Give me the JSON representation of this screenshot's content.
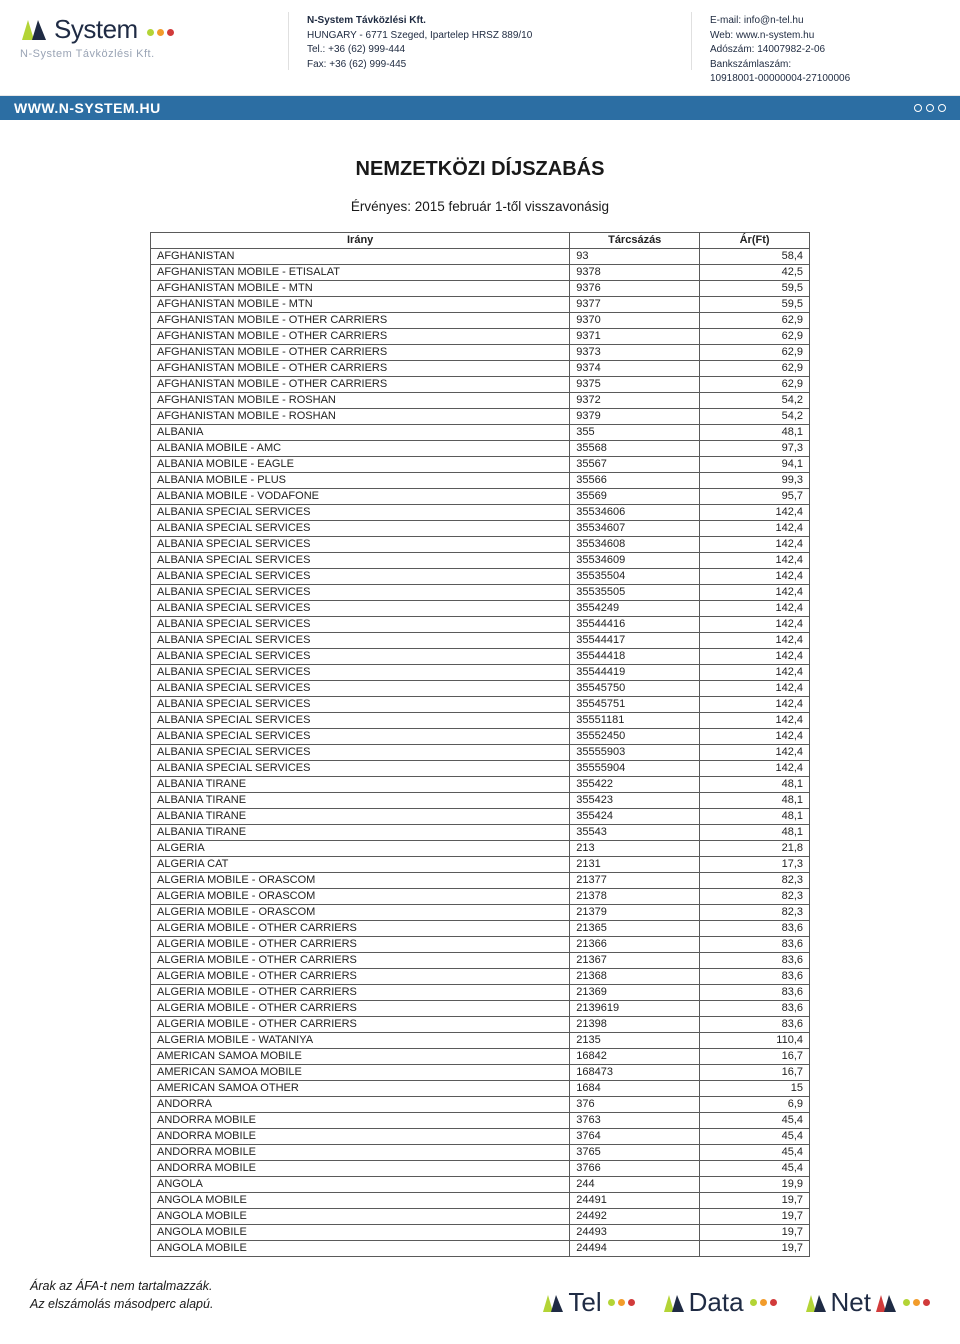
{
  "colors": {
    "barBlue": "#2c6ea3",
    "navy": "#1f2b44",
    "dotGreen": "#b3d436",
    "dotOrange": "#f29c2b",
    "dotRed": "#d13b3b",
    "tableBorder": "#5a5a5a"
  },
  "header": {
    "logoText": "System",
    "logoLetter": "N",
    "tagline": "N-System Távközlési Kft.",
    "addr1_line1": "N-System Távközlési Kft.",
    "addr1_line2": "HUNGARY - 6771 Szeged, Ipartelep HRSZ 889/10",
    "addr1_line3": "Tel.: +36  (62) 999-444",
    "addr1_line4": "Fax: +36  (62) 999-445",
    "addr2_line1": "E-mail: info@n-tel.hu",
    "addr2_line2": "Web: www.n-system.hu",
    "addr2_line3": "Adószám: 14007982-2-06",
    "addr2_line4": "Bankszámlaszám:",
    "addr2_line5": "10918001-00000004-27100006",
    "barText": "WWW.N-SYSTEM.HU"
  },
  "title": "NEMZETKÖZI DÍJSZABÁS",
  "subtitle": "Érvényes: 2015 február 1-től visszavonásig",
  "table": {
    "headers": [
      "Irány",
      "Tárcsázás",
      "Ár(Ft)"
    ],
    "rows": [
      [
        "AFGHANISTAN",
        "93",
        "58,4"
      ],
      [
        "AFGHANISTAN MOBILE - ETISALAT",
        "9378",
        "42,5"
      ],
      [
        "AFGHANISTAN MOBILE - MTN",
        "9376",
        "59,5"
      ],
      [
        "AFGHANISTAN MOBILE - MTN",
        "9377",
        "59,5"
      ],
      [
        "AFGHANISTAN MOBILE - OTHER CARRIERS",
        "9370",
        "62,9"
      ],
      [
        "AFGHANISTAN MOBILE - OTHER CARRIERS",
        "9371",
        "62,9"
      ],
      [
        "AFGHANISTAN MOBILE - OTHER CARRIERS",
        "9373",
        "62,9"
      ],
      [
        "AFGHANISTAN MOBILE - OTHER CARRIERS",
        "9374",
        "62,9"
      ],
      [
        "AFGHANISTAN MOBILE - OTHER CARRIERS",
        "9375",
        "62,9"
      ],
      [
        "AFGHANISTAN MOBILE - ROSHAN",
        "9372",
        "54,2"
      ],
      [
        "AFGHANISTAN MOBILE - ROSHAN",
        "9379",
        "54,2"
      ],
      [
        "ALBANIA",
        "355",
        "48,1"
      ],
      [
        "ALBANIA MOBILE - AMC",
        "35568",
        "97,3"
      ],
      [
        "ALBANIA MOBILE - EAGLE",
        "35567",
        "94,1"
      ],
      [
        "ALBANIA MOBILE - PLUS",
        "35566",
        "99,3"
      ],
      [
        "ALBANIA MOBILE - VODAFONE",
        "35569",
        "95,7"
      ],
      [
        "ALBANIA SPECIAL SERVICES",
        "35534606",
        "142,4"
      ],
      [
        "ALBANIA SPECIAL SERVICES",
        "35534607",
        "142,4"
      ],
      [
        "ALBANIA SPECIAL SERVICES",
        "35534608",
        "142,4"
      ],
      [
        "ALBANIA SPECIAL SERVICES",
        "35534609",
        "142,4"
      ],
      [
        "ALBANIA SPECIAL SERVICES",
        "35535504",
        "142,4"
      ],
      [
        "ALBANIA SPECIAL SERVICES",
        "35535505",
        "142,4"
      ],
      [
        "ALBANIA SPECIAL SERVICES",
        "3554249",
        "142,4"
      ],
      [
        "ALBANIA SPECIAL SERVICES",
        "35544416",
        "142,4"
      ],
      [
        "ALBANIA SPECIAL SERVICES",
        "35544417",
        "142,4"
      ],
      [
        "ALBANIA SPECIAL SERVICES",
        "35544418",
        "142,4"
      ],
      [
        "ALBANIA SPECIAL SERVICES",
        "35544419",
        "142,4"
      ],
      [
        "ALBANIA SPECIAL SERVICES",
        "35545750",
        "142,4"
      ],
      [
        "ALBANIA SPECIAL SERVICES",
        "35545751",
        "142,4"
      ],
      [
        "ALBANIA SPECIAL SERVICES",
        "35551181",
        "142,4"
      ],
      [
        "ALBANIA SPECIAL SERVICES",
        "35552450",
        "142,4"
      ],
      [
        "ALBANIA SPECIAL SERVICES",
        "35555903",
        "142,4"
      ],
      [
        "ALBANIA SPECIAL SERVICES",
        "35555904",
        "142,4"
      ],
      [
        "ALBANIA TIRANE",
        "355422",
        "48,1"
      ],
      [
        "ALBANIA TIRANE",
        "355423",
        "48,1"
      ],
      [
        "ALBANIA TIRANE",
        "355424",
        "48,1"
      ],
      [
        "ALBANIA TIRANE",
        "35543",
        "48,1"
      ],
      [
        "ALGERIA",
        "213",
        "21,8"
      ],
      [
        "ALGERIA CAT",
        "2131",
        "17,3"
      ],
      [
        "ALGERIA MOBILE - ORASCOM",
        "21377",
        "82,3"
      ],
      [
        "ALGERIA MOBILE - ORASCOM",
        "21378",
        "82,3"
      ],
      [
        "ALGERIA MOBILE - ORASCOM",
        "21379",
        "82,3"
      ],
      [
        "ALGERIA MOBILE - OTHER CARRIERS",
        "21365",
        "83,6"
      ],
      [
        "ALGERIA MOBILE - OTHER CARRIERS",
        "21366",
        "83,6"
      ],
      [
        "ALGERIA MOBILE - OTHER CARRIERS",
        "21367",
        "83,6"
      ],
      [
        "ALGERIA MOBILE - OTHER CARRIERS",
        "21368",
        "83,6"
      ],
      [
        "ALGERIA MOBILE - OTHER CARRIERS",
        "21369",
        "83,6"
      ],
      [
        "ALGERIA MOBILE - OTHER CARRIERS",
        "2139619",
        "83,6"
      ],
      [
        "ALGERIA MOBILE - OTHER CARRIERS",
        "21398",
        "83,6"
      ],
      [
        "ALGERIA MOBILE - WATANIYA",
        "2135",
        "110,4"
      ],
      [
        "AMERICAN SAMOA MOBILE",
        "16842",
        "16,7"
      ],
      [
        "AMERICAN SAMOA MOBILE",
        "168473",
        "16,7"
      ],
      [
        "AMERICAN SAMOA OTHER",
        "1684",
        "15"
      ],
      [
        "ANDORRA",
        "376",
        "6,9"
      ],
      [
        "ANDORRA MOBILE",
        "3763",
        "45,4"
      ],
      [
        "ANDORRA MOBILE",
        "3764",
        "45,4"
      ],
      [
        "ANDORRA MOBILE",
        "3765",
        "45,4"
      ],
      [
        "ANDORRA MOBILE",
        "3766",
        "45,4"
      ],
      [
        "ANGOLA",
        "244",
        "19,9"
      ],
      [
        "ANGOLA MOBILE",
        "24491",
        "19,7"
      ],
      [
        "ANGOLA MOBILE",
        "24492",
        "19,7"
      ],
      [
        "ANGOLA MOBILE",
        "24493",
        "19,7"
      ],
      [
        "ANGOLA MOBILE",
        "24494",
        "19,7"
      ]
    ]
  },
  "footer": {
    "note1": "Árak az ÁFA-t nem tartalmazzák.",
    "note2": "Az elszámolás másodperc alapú.",
    "brands": [
      {
        "text": "Tel"
      },
      {
        "text": "Data"
      },
      {
        "text": "Net"
      }
    ]
  }
}
